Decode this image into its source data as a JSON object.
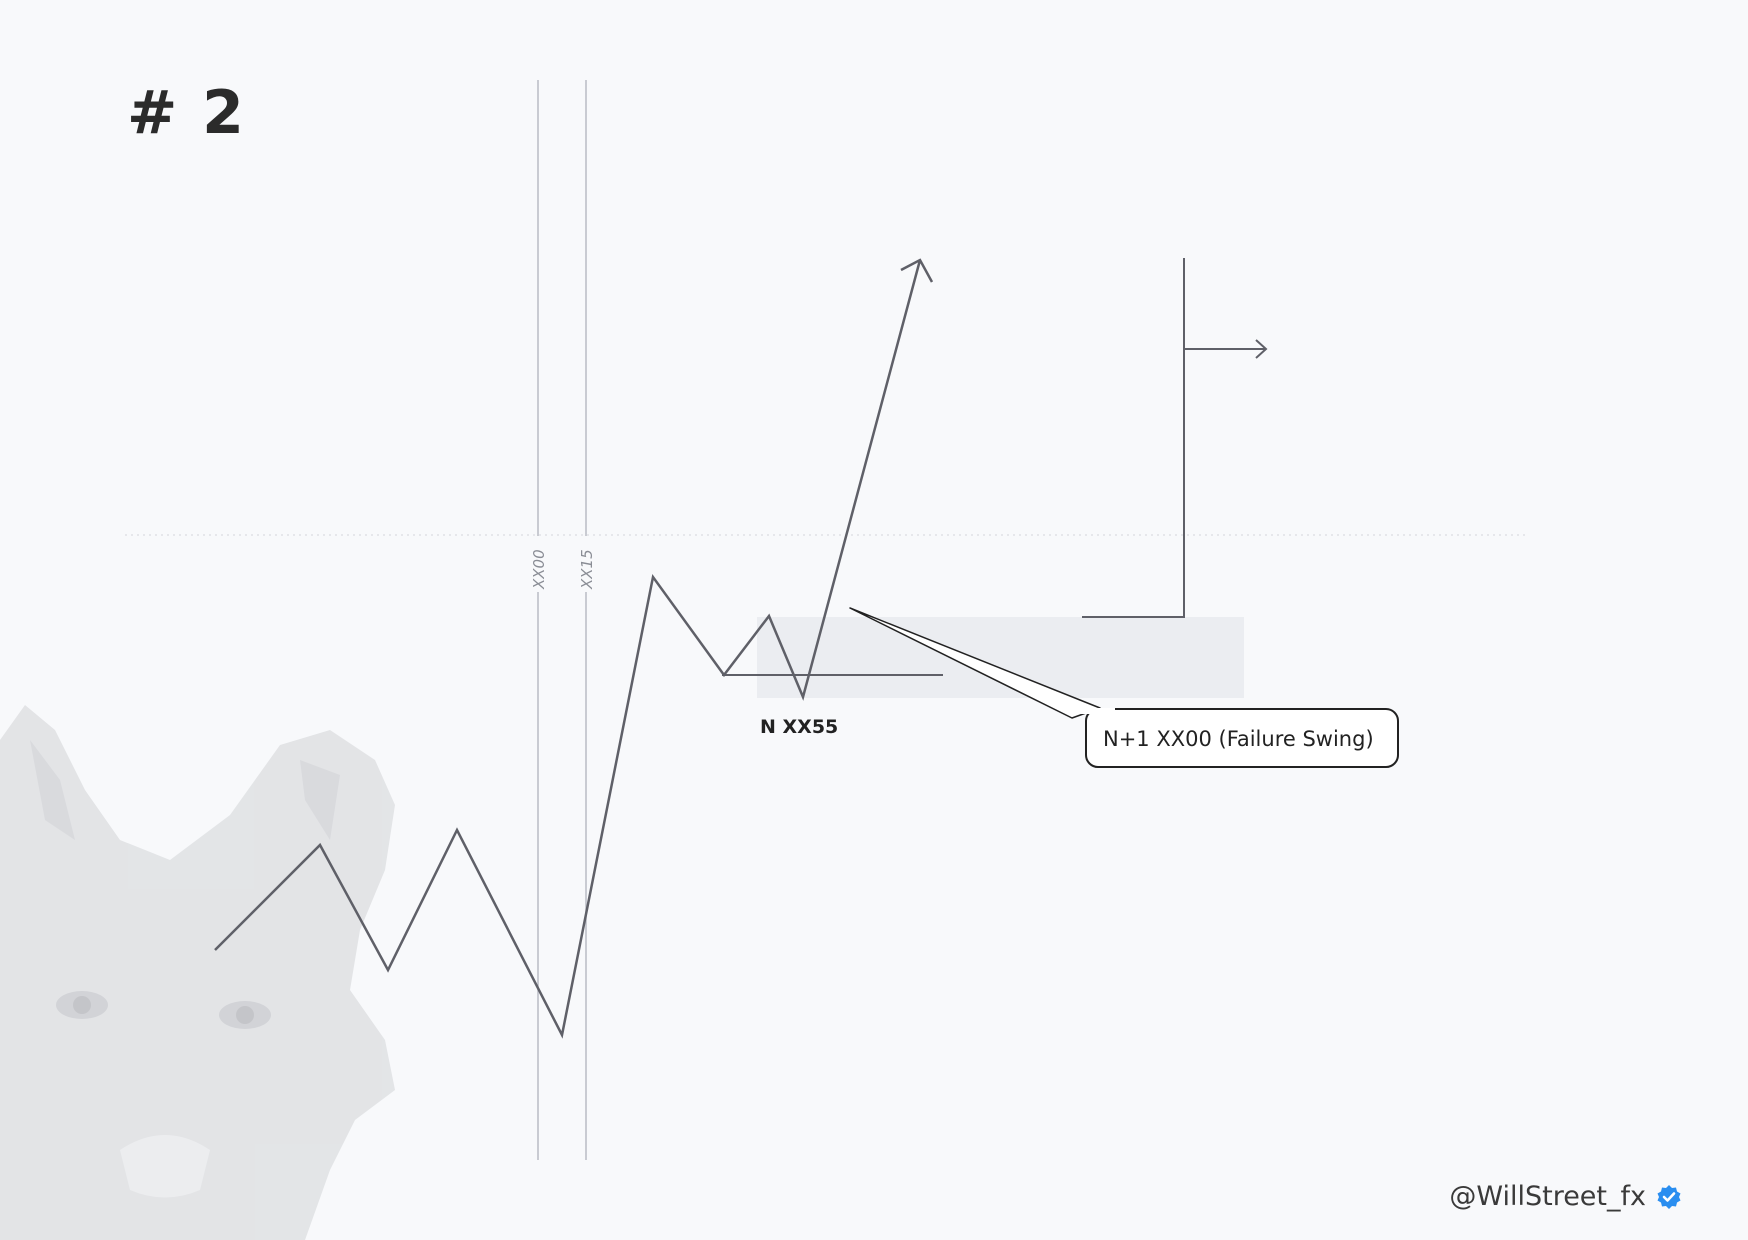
{
  "slide": {
    "number": "# 2"
  },
  "diagram": {
    "time_labels": [
      "XX00",
      "XX15"
    ],
    "swing_label": "N XX55",
    "callout": "N+1 XX00 (Failure Swing)"
  },
  "footer": {
    "handle": "@WillStreet_fx"
  },
  "colors": {
    "line": "#5f6068",
    "guide": "#b9bcc4",
    "zone": "#ebedf1",
    "badge": "#2a8ef0",
    "watermark": "#d9dadd"
  },
  "watermark": {
    "icon": "wolf-head-watermark"
  }
}
